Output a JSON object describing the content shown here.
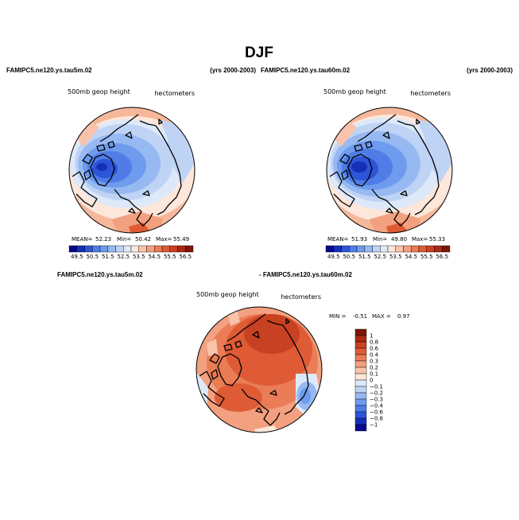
{
  "figure": {
    "title": "DJF"
  },
  "chart_data": [
    {
      "type": "heatmap",
      "projection": "north-polar-stereographic",
      "title": "FAMIPC5.ne120.ys.tau5m.02",
      "period": "(yrs 2000-2003)",
      "variable": "500mb geop height",
      "units": "hectometers",
      "stats": {
        "mean_label": "MEAN=",
        "mean": "52.23",
        "min_label": "Min=",
        "min": "50.42",
        "max_label": "Max=",
        "max": "55.49"
      },
      "colorbar_ticks": [
        "49.5",
        "50.5",
        "51.5",
        "52.5",
        "53.5",
        "54.5",
        "55.5",
        "56.5"
      ]
    },
    {
      "type": "heatmap",
      "projection": "north-polar-stereographic",
      "title": "FAMIPC5.ne120.ys.tau60m.02",
      "period": "(yrs 2000-2003)",
      "variable": "500mb geop height",
      "units": "hectometers",
      "stats": {
        "mean_label": "MEAN=",
        "mean": "51.93",
        "min_label": "Min=",
        "min": "49.80",
        "max_label": "Max=",
        "max": "55.33"
      },
      "colorbar_ticks": [
        "49.5",
        "50.5",
        "51.5",
        "52.5",
        "53.5",
        "54.5",
        "55.5",
        "56.5"
      ]
    },
    {
      "type": "heatmap",
      "projection": "north-polar-stereographic",
      "title_left": "FAMIPC5.ne120.ys.tau5m.02",
      "title_right": "- FAMIPC5.ne120.ys.tau60m.02",
      "variable": "500mb geop height",
      "units": "hectometers",
      "stats": {
        "min_label": "MIN =",
        "min": "-0.51",
        "max_label": "MAX =",
        "max": "0.97"
      },
      "colorbar_ticks": [
        "1",
        "0.8",
        "0.6",
        "0.4",
        "0.3",
        "0.2",
        "0.1",
        "0",
        "−0.1",
        "−0.2",
        "−0.3",
        "−0.4",
        "−0.6",
        "−0.8",
        "−1"
      ]
    }
  ],
  "colors": {
    "field_scale": [
      "#08088e",
      "#1530b8",
      "#2d55d6",
      "#4f7ce6",
      "#6f9bee",
      "#97b9f2",
      "#bfd3f5",
      "#dde9f9",
      "#fde6da",
      "#f8c3aa",
      "#f2a07f",
      "#ea7c56",
      "#de5b36",
      "#c84122",
      "#a82a14",
      "#7e1606"
    ],
    "diff_scale": [
      "#7e1606",
      "#a82a14",
      "#c84122",
      "#de5b36",
      "#ea7c56",
      "#f2a07f",
      "#f8c3aa",
      "#fde6da",
      "#dde9f9",
      "#bfd3f5",
      "#97b9f2",
      "#6f9bee",
      "#4f7ce6",
      "#2d55d6",
      "#1530b8",
      "#08088e"
    ]
  }
}
